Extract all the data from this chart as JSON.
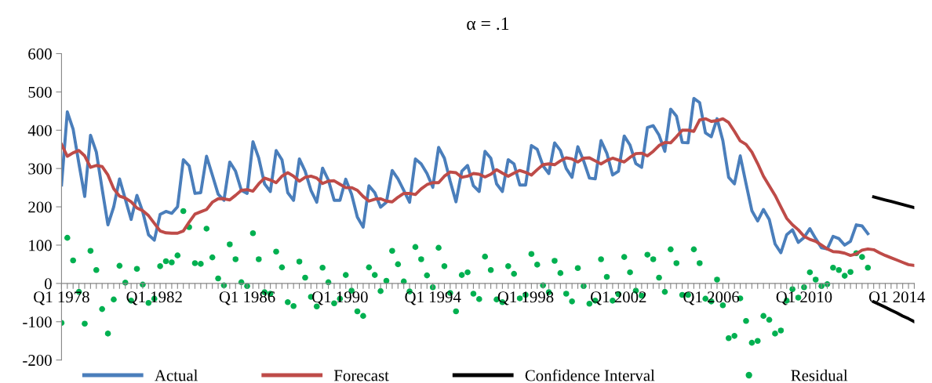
{
  "chart_data": {
    "type": "line",
    "title": "α = .1",
    "categories": [
      "Q1 1978",
      null,
      null,
      null,
      null,
      null,
      null,
      null,
      null,
      null,
      null,
      null,
      null,
      null,
      null,
      null,
      "Q1 1982",
      null,
      null,
      null,
      null,
      null,
      null,
      null,
      null,
      null,
      null,
      null,
      null,
      null,
      null,
      null,
      "Q1 1986",
      null,
      null,
      null,
      null,
      null,
      null,
      null,
      null,
      null,
      null,
      null,
      null,
      null,
      null,
      null,
      "Q1 1990",
      null,
      null,
      null,
      null,
      null,
      null,
      null,
      null,
      null,
      null,
      null,
      null,
      null,
      null,
      null,
      "Q1 1994",
      null,
      null,
      null,
      null,
      null,
      null,
      null,
      null,
      null,
      null,
      null,
      null,
      null,
      null,
      null,
      "Q1 1998",
      null,
      null,
      null,
      null,
      null,
      null,
      null,
      null,
      null,
      null,
      null,
      null,
      null,
      null,
      null,
      "Q1 2002",
      null,
      null,
      null,
      null,
      null,
      null,
      null,
      null,
      null,
      null,
      null,
      null,
      null,
      null,
      null,
      "Q1 2006",
      null,
      null,
      null,
      null,
      null,
      null,
      null,
      null,
      null,
      null,
      null,
      null,
      null,
      null,
      null,
      "Q1 2010",
      null,
      null,
      null,
      null,
      null,
      null,
      null,
      null,
      null,
      null,
      null,
      null,
      null,
      null,
      null,
      "Q1 2014",
      null,
      null,
      null
    ],
    "series": [
      {
        "name": "Actual",
        "color": "#4a7ebb",
        "values": [
          257,
          448,
          403,
          313,
          227,
          387,
          343,
          247,
          153,
          200,
          273,
          220,
          167,
          230,
          187,
          127,
          113,
          180,
          188,
          183,
          200,
          323,
          307,
          235,
          237,
          332,
          283,
          233,
          217,
          317,
          293,
          243,
          235,
          370,
          327,
          260,
          240,
          347,
          323,
          237,
          217,
          325,
          293,
          243,
          212,
          301,
          270,
          217,
          217,
          272,
          233,
          173,
          147,
          255,
          237,
          199,
          212,
          295,
          273,
          243,
          212,
          325,
          312,
          287,
          251,
          355,
          327,
          267,
          213,
          293,
          308,
          255,
          240,
          345,
          327,
          260,
          240,
          323,
          312,
          257,
          257,
          360,
          350,
          307,
          287,
          367,
          347,
          300,
          277,
          357,
          320,
          275,
          273,
          373,
          340,
          283,
          293,
          385,
          361,
          313,
          303,
          407,
          412,
          387,
          345,
          455,
          437,
          368,
          367,
          483,
          472,
          393,
          383,
          430,
          373,
          277,
          260,
          333,
          260,
          190,
          163,
          193,
          167,
          103,
          80,
          127,
          140,
          107,
          120,
          143,
          117,
          93,
          90,
          123,
          117,
          100,
          110,
          153,
          150,
          130,
          null,
          null,
          null,
          null,
          null,
          null,
          null,
          null
        ]
      },
      {
        "name": "Forecast",
        "color": "#be4b48",
        "values": [
          363,
          332,
          341,
          347,
          333,
          303,
          308,
          305,
          283,
          247,
          228,
          223,
          213,
          197,
          190,
          177,
          157,
          137,
          132,
          131,
          131,
          137,
          160,
          181,
          187,
          193,
          212,
          221,
          221,
          218,
          230,
          243,
          245,
          241,
          260,
          275,
          270,
          263,
          280,
          289,
          280,
          267,
          277,
          280,
          275,
          261,
          267,
          268,
          259,
          250,
          250,
          243,
          227,
          215,
          220,
          221,
          215,
          213,
          225,
          235,
          235,
          232,
          247,
          258,
          263,
          263,
          280,
          291,
          289,
          277,
          280,
          287,
          285,
          278,
          285,
          297,
          288,
          280,
          288,
          295,
          290,
          283,
          297,
          310,
          312,
          310,
          320,
          328,
          325,
          317,
          327,
          328,
          320,
          312,
          321,
          327,
          322,
          317,
          329,
          339,
          340,
          333,
          345,
          360,
          368,
          367,
          383,
          400,
          400,
          397,
          427,
          430,
          423,
          425,
          430,
          420,
          397,
          372,
          363,
          343,
          313,
          280,
          255,
          230,
          200,
          170,
          153,
          140,
          123,
          115,
          110,
          100,
          90,
          83,
          82,
          79,
          73,
          77,
          87,
          90,
          88,
          80,
          73,
          67,
          61,
          55,
          49,
          47
        ]
      },
      {
        "name": "Confidence Interval",
        "color": "#000000",
        "values": [
          null,
          null,
          null,
          null,
          null,
          null,
          null,
          null,
          null,
          null,
          null,
          null,
          null,
          null,
          null,
          null,
          null,
          null,
          null,
          null,
          null,
          null,
          null,
          null,
          null,
          null,
          null,
          null,
          null,
          null,
          null,
          null,
          null,
          null,
          null,
          null,
          null,
          null,
          null,
          null,
          null,
          null,
          null,
          null,
          null,
          null,
          null,
          null,
          null,
          null,
          null,
          null,
          null,
          null,
          null,
          null,
          null,
          null,
          null,
          null,
          null,
          null,
          null,
          null,
          null,
          null,
          null,
          null,
          null,
          null,
          null,
          null,
          null,
          null,
          null,
          null,
          null,
          null,
          null,
          null,
          null,
          null,
          null,
          null,
          null,
          null,
          null,
          null,
          null,
          null,
          null,
          null,
          null,
          null,
          null,
          null,
          null,
          null,
          null,
          null,
          null,
          null,
          null,
          null,
          null,
          null,
          null,
          null,
          null,
          null,
          null,
          null,
          null,
          null,
          null,
          null,
          null,
          null,
          null,
          null,
          null,
          null,
          null,
          null,
          null,
          null,
          null,
          null,
          null,
          null,
          null,
          null,
          null,
          null,
          null,
          null,
          null,
          null,
          null,
          null,
          226,
          222,
          218,
          214,
          210,
          206,
          202,
          198
        ]
      },
      {
        "color": "#000000",
        "values": [
          null,
          null,
          null,
          null,
          null,
          null,
          null,
          null,
          null,
          null,
          null,
          null,
          null,
          null,
          null,
          null,
          null,
          null,
          null,
          null,
          null,
          null,
          null,
          null,
          null,
          null,
          null,
          null,
          null,
          null,
          null,
          null,
          null,
          null,
          null,
          null,
          null,
          null,
          null,
          null,
          null,
          null,
          null,
          null,
          null,
          null,
          null,
          null,
          null,
          null,
          null,
          null,
          null,
          null,
          null,
          null,
          null,
          null,
          null,
          null,
          null,
          null,
          null,
          null,
          null,
          null,
          null,
          null,
          null,
          null,
          null,
          null,
          null,
          null,
          null,
          null,
          null,
          null,
          null,
          null,
          null,
          null,
          null,
          null,
          null,
          null,
          null,
          null,
          null,
          null,
          null,
          null,
          null,
          null,
          null,
          null,
          null,
          null,
          null,
          null,
          null,
          null,
          null,
          null,
          null,
          null,
          null,
          null,
          null,
          null,
          null,
          null,
          null,
          null,
          null,
          null,
          null,
          null,
          null,
          null,
          null,
          null,
          null,
          null,
          null,
          null,
          null,
          null,
          null,
          null,
          null,
          null,
          null,
          null,
          null,
          null,
          null,
          null,
          null,
          null,
          -48,
          -55,
          -62,
          -70,
          -77,
          -85,
          -92,
          -100
        ]
      },
      {
        "name": "Residual",
        "type": "scatter",
        "color": "#00b050",
        "marker": "circle",
        "values": [
          -103,
          119,
          60,
          -22,
          -105,
          85,
          35,
          -67,
          -131,
          -42,
          46,
          2,
          -45,
          38,
          -3,
          -51,
          -40,
          45,
          58,
          55,
          73,
          189,
          147,
          53,
          51,
          143,
          68,
          13,
          -5,
          102,
          63,
          3,
          -7,
          131,
          63,
          -23,
          -27,
          83,
          42,
          -49,
          -59,
          57,
          15,
          -35,
          -60,
          41,
          3,
          -52,
          -40,
          22,
          -19,
          -73,
          -85,
          42,
          22,
          -20,
          7,
          85,
          50,
          5,
          -21,
          95,
          63,
          21,
          -10,
          93,
          45,
          -25,
          -73,
          22,
          29,
          -27,
          -41,
          70,
          35,
          -42,
          -49,
          45,
          25,
          -39,
          -30,
          77,
          49,
          -5,
          -23,
          59,
          27,
          -27,
          -47,
          40,
          -7,
          -53,
          -45,
          63,
          17,
          -45,
          -28,
          69,
          29,
          -19,
          -32,
          75,
          63,
          15,
          -22,
          89,
          53,
          -30,
          -30,
          89,
          53,
          -40,
          -47,
          10,
          -57,
          -143,
          -137,
          -39,
          -98,
          -155,
          -150,
          -85,
          -95,
          -131,
          -123,
          -45,
          -15,
          -37,
          -10,
          29,
          10,
          -7,
          -2,
          41,
          35,
          20,
          30,
          79,
          69,
          41,
          null,
          null,
          null,
          null,
          null,
          null,
          null,
          null
        ]
      }
    ],
    "ylim": [
      -200,
      600
    ],
    "yticks": [
      -200,
      -100,
      0,
      100,
      200,
      300,
      400,
      500,
      600
    ],
    "grid": false,
    "legend": "bottom"
  }
}
